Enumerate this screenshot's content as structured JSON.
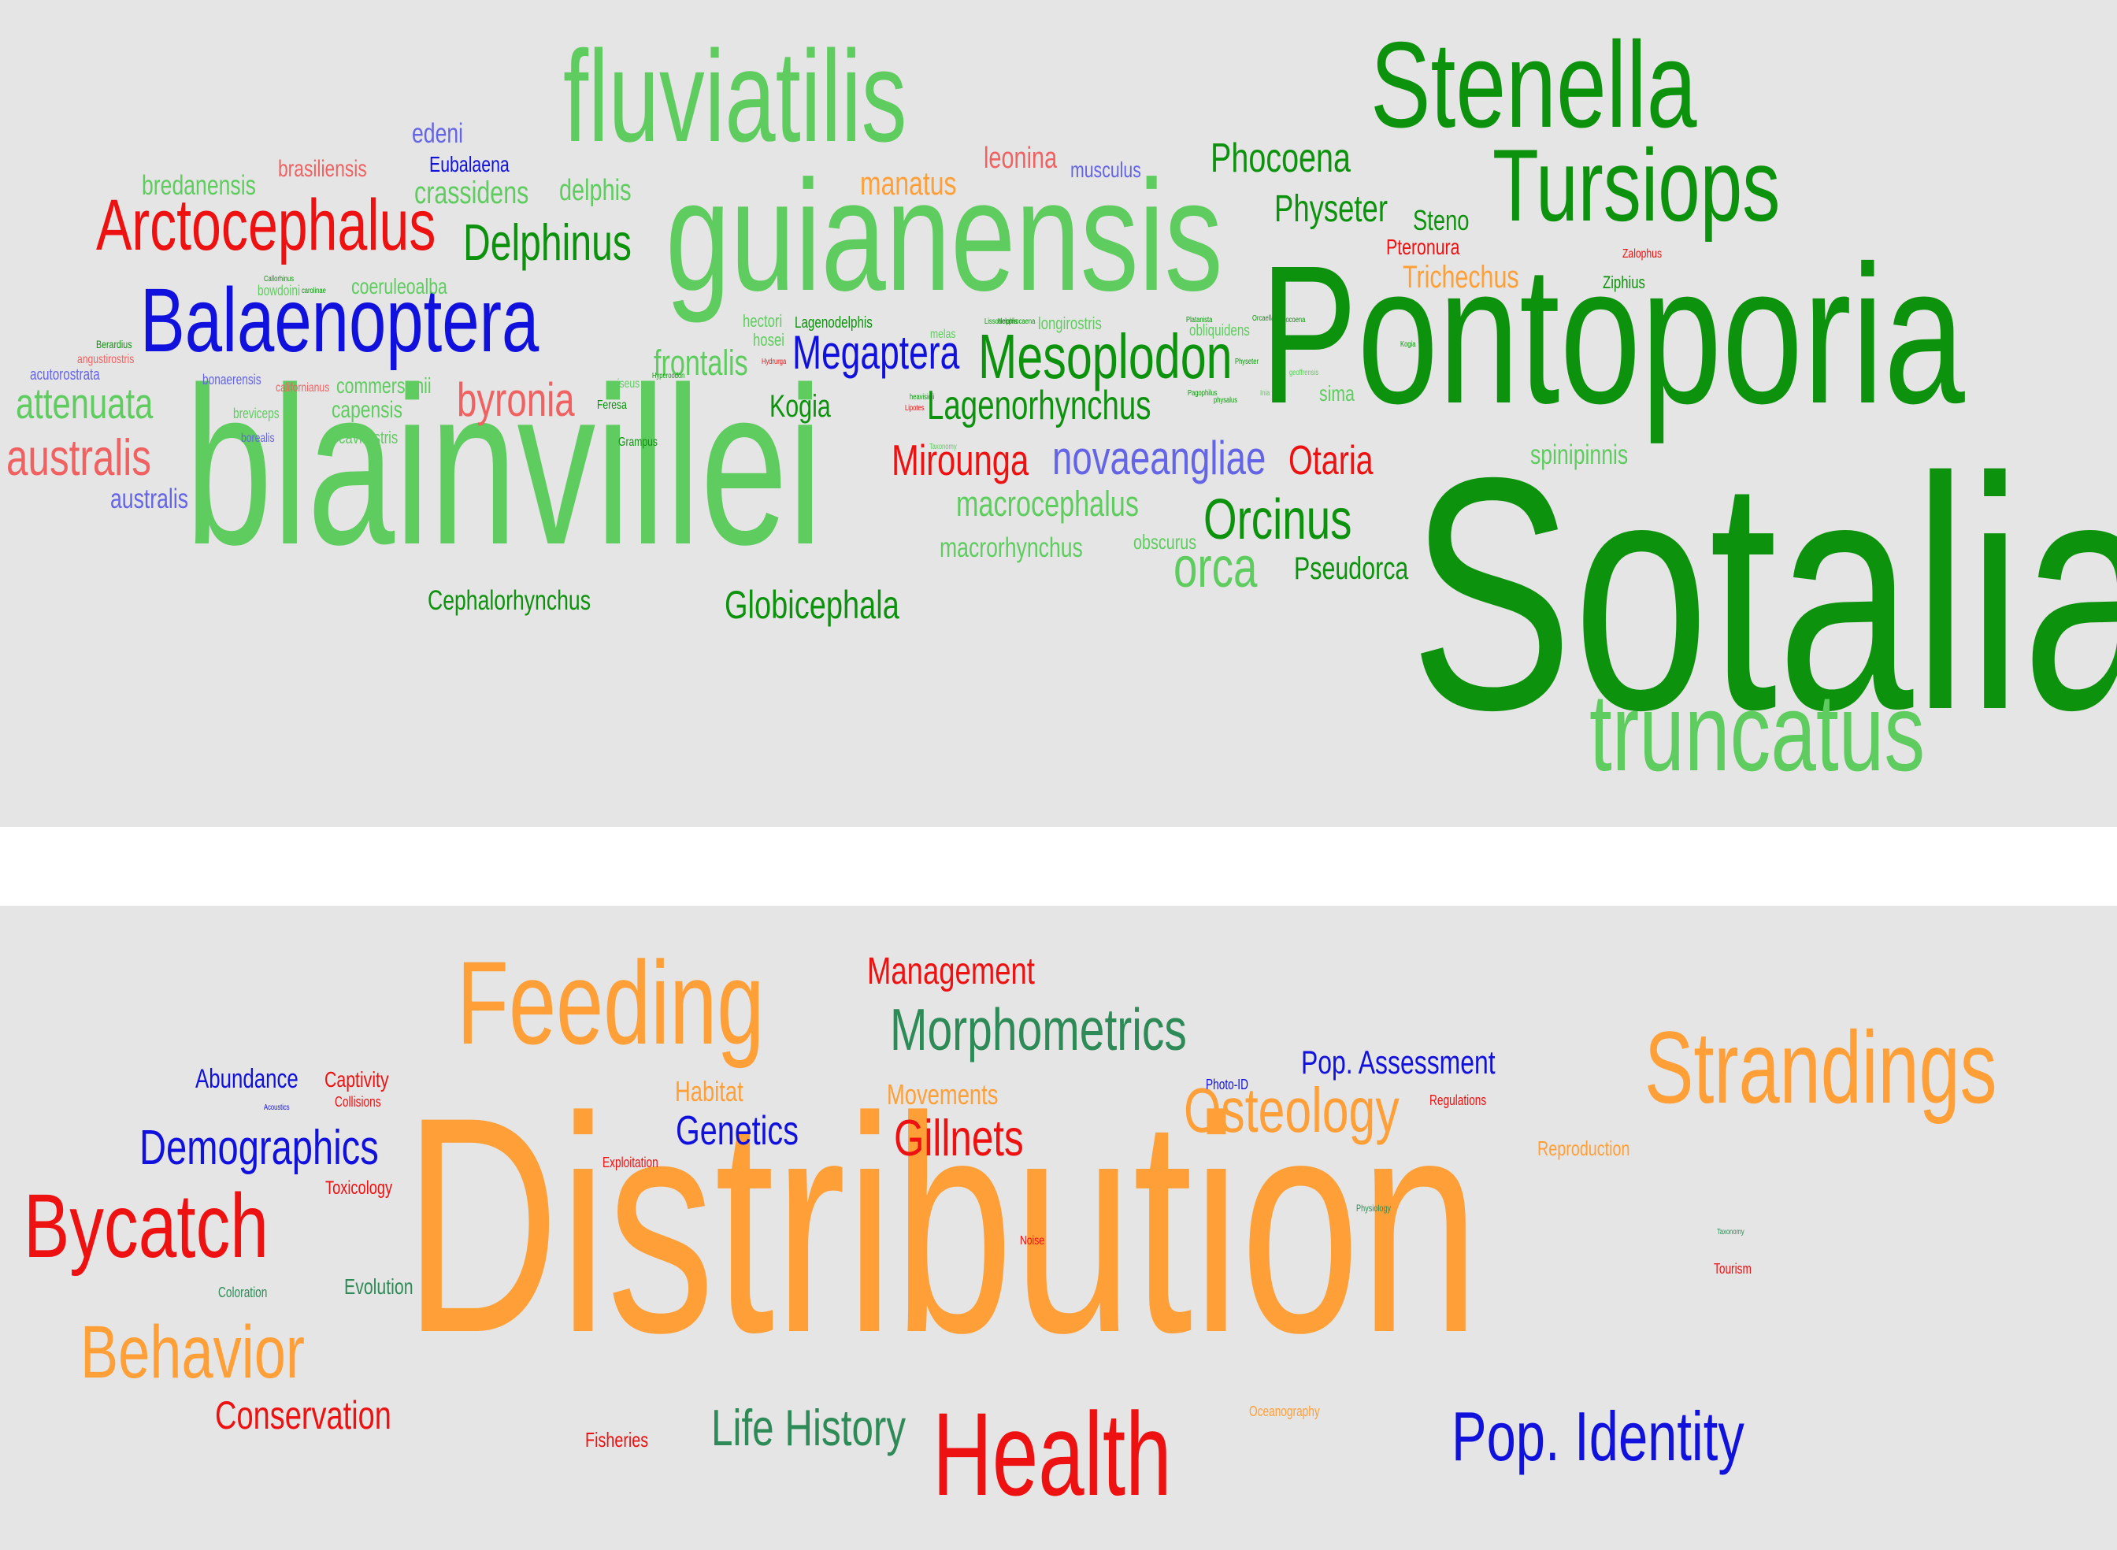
{
  "colors": {
    "dark_green": "#0d920d",
    "light_green": "#5fcc5f",
    "red": "#ee1111",
    "light_red": "#f06262",
    "blue": "#1111dd",
    "light_blue": "#6464e6",
    "orange": "#ff9f38",
    "teal_green": "#2e8b57"
  },
  "species_cloud": {
    "words": [
      "Sotalia",
      "Pontoporia",
      "blainvillei",
      "guianensis",
      "fluviatilis",
      "Stenella",
      "Tursiops",
      "truncatus",
      "Balaenoptera",
      "Arctocephalus",
      "Mesoplodon",
      "Megaptera",
      "Delphinus",
      "Lagenorhynchus",
      "Orcinus",
      "orca",
      "Phocoena",
      "Physeter",
      "Otaria",
      "Mirounga",
      "novaeangliae",
      "attenuata",
      "australis",
      "byronia",
      "macrocephalus",
      "macrorhynchus",
      "Globicephala",
      "Pseudorca",
      "Cephalorhynchus",
      "frontalis",
      "Trichechus",
      "manatus",
      "leonina",
      "crassidens",
      "delphis",
      "bredanensis",
      "brasiliensis",
      "edeni",
      "Eubalaena",
      "musculus",
      "Steno",
      "Pteronura",
      "Kogia",
      "spinipinnis",
      "sima",
      "Ziphius",
      "Zalophus",
      "capensis",
      "commersonii",
      "coeruleoalba",
      "cavirostris",
      "hosei",
      "hectori",
      "Lagenodelphis",
      "longirostris",
      "australis",
      "acutorostrata",
      "angustirostris",
      "bonaerensis",
      "Berardius",
      "Feresa",
      "Grampus",
      "griseus",
      "obscurus",
      "obliquidens",
      "bowdoini",
      "breviceps",
      "borealis",
      "californianus",
      "melas",
      "Callorhinus",
      "carolinae",
      "Physeter",
      "Hyperoodon",
      "Hydrurga",
      "Lissodelphis",
      "Neophocaena",
      "Orcaella",
      "Platanista",
      "phocoena",
      "Pagophilus",
      "physalus",
      "Inia",
      "geoffrensis",
      "Kogia",
      "heavisidii",
      "Lipotes",
      "Taxonomy"
    ]
  },
  "topic_cloud": {
    "words": [
      "Distribution",
      "Health",
      "Feeding",
      "Strandings",
      "Morphometrics",
      "Management",
      "Osteology",
      "Gillnets",
      "Genetics",
      "Demographics",
      "Bycatch",
      "Behavior",
      "Conservation",
      "Life History",
      "Pop. Identity",
      "Pop. Assessment",
      "Abundance",
      "Captivity",
      "Collisions",
      "Acoustics",
      "Toxicology",
      "Coloration",
      "Evolution",
      "Exploitation",
      "Fisheries",
      "Habitat",
      "Movements",
      "Photo-ID",
      "Regulations",
      "Reproduction",
      "Physiology",
      "Noise",
      "Taxonomy",
      "Tourism",
      "Oceanography"
    ]
  }
}
